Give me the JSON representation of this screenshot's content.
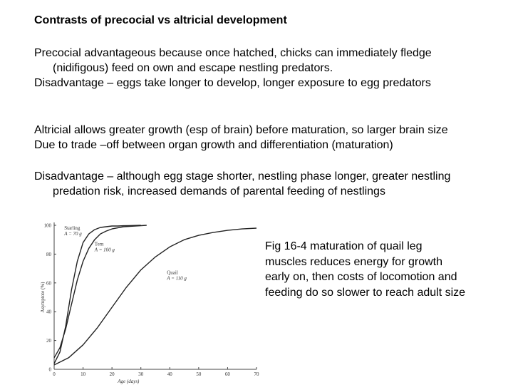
{
  "title": "Contrasts of precocial vs altricial development",
  "paragraphs": {
    "precocial": [
      "Precocial advantageous because once hatched, chicks can immediately fledge",
      "(nidifigous) feed on own and escape nestling predators.",
      "Disadvantage – eggs take longer to develop, longer exposure to egg predators"
    ],
    "altricial": [
      "Altricial allows greater growth (esp of brain) before maturation, so larger brain size",
      "Due to trade –off between organ growth and differentiation (maturation)"
    ],
    "disadvantage": [
      "Disadvantage – although egg stage shorter, nestling phase longer, greater nestling",
      "predation risk, increased demands of parental feeding of nestlings"
    ]
  },
  "caption": [
    "Fig 16-4  maturation of quail leg",
    "muscles reduces energy for growth",
    "early on, then costs of locomotion and",
    "feeding do so slower to reach adult size"
  ],
  "chart_data": {
    "type": "line",
    "xlabel": "Age (days)",
    "ylabel": "Asymptote (%)",
    "xlim": [
      0,
      70
    ],
    "ylim": [
      0,
      100
    ],
    "x_ticks": [
      0,
      10,
      20,
      30,
      40,
      50,
      60,
      70
    ],
    "y_ticks": [
      0,
      20,
      40,
      60,
      80,
      100
    ],
    "grid": false,
    "series": [
      {
        "name": "Starling",
        "label_lines": [
          "Starling",
          "A = 70 g"
        ],
        "x": [
          0,
          2,
          4,
          6,
          8,
          10,
          12,
          14,
          16,
          18,
          20,
          22,
          24,
          26,
          30
        ],
        "y": [
          4,
          12,
          30,
          55,
          75,
          88,
          94,
          97,
          98.5,
          99,
          99.5,
          99.5,
          99.7,
          99.8,
          100
        ]
      },
      {
        "name": "Tern",
        "label_lines": [
          "Tern",
          "A = 100 g"
        ],
        "x": [
          0,
          2,
          4,
          6,
          8,
          10,
          12,
          14,
          16,
          18,
          20,
          24,
          28,
          32
        ],
        "y": [
          8,
          15,
          28,
          45,
          62,
          75,
          84,
          90,
          94,
          96,
          97.5,
          99,
          99.5,
          100
        ]
      },
      {
        "name": "Quail",
        "label_lines": [
          "Quail",
          "A = 110 g"
        ],
        "x": [
          0,
          5,
          10,
          15,
          20,
          25,
          30,
          35,
          40,
          45,
          50,
          55,
          60,
          65,
          70
        ],
        "y": [
          3,
          8,
          17,
          29,
          43,
          57,
          69,
          78,
          85,
          90,
          93,
          95,
          96.5,
          97.5,
          98
        ]
      }
    ]
  }
}
